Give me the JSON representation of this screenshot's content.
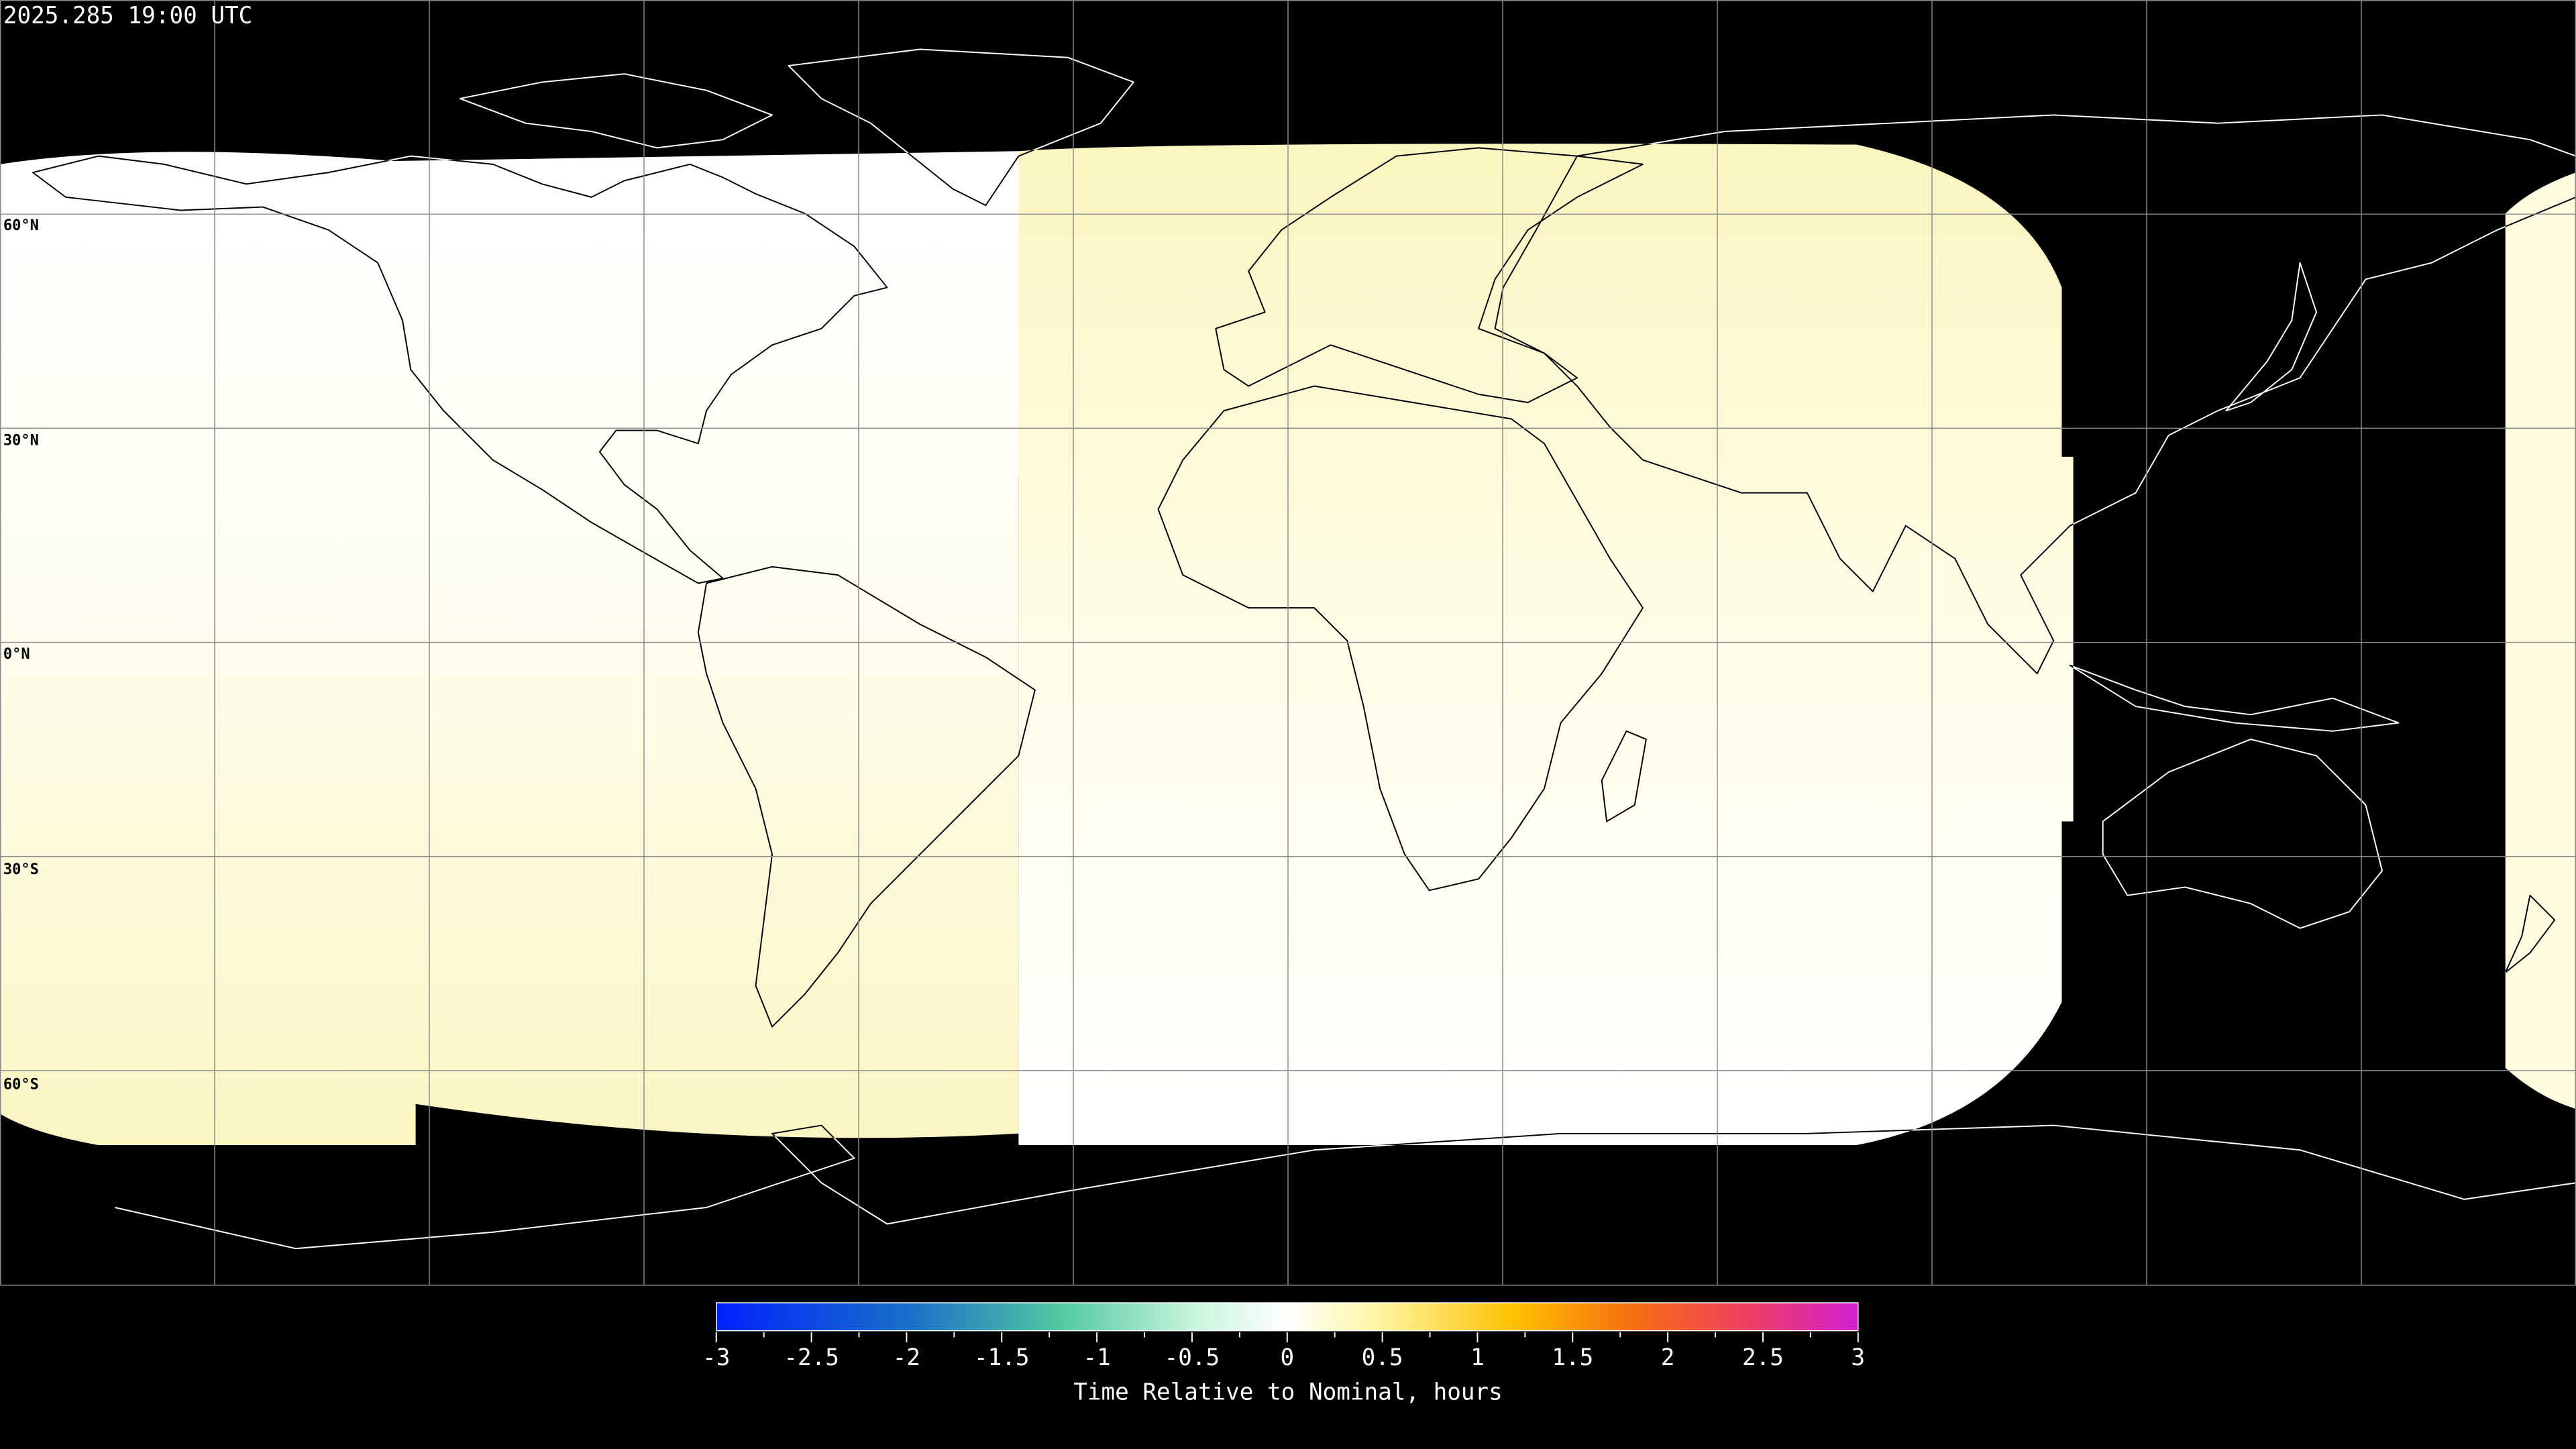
{
  "title": "2025.285 19:00 UTC",
  "map": {
    "projection": "equirectangular",
    "background_color": "#000000",
    "coverage_colors": {
      "white": "#ffffff",
      "light_yellow": "#fbf5c2"
    },
    "lat_labels": [
      "60°N",
      "30°N",
      "0°N",
      "30°S",
      "60°S"
    ],
    "grid_spacing_deg": 30
  },
  "colorbar": {
    "min": -3,
    "max": 3,
    "tick_labels": [
      "-3",
      "-2.5",
      "-2",
      "-1.5",
      "-1",
      "-0.5",
      "0",
      "0.5",
      "1",
      "1.5",
      "2",
      "2.5",
      "3"
    ],
    "label": "Time Relative to Nominal, hours",
    "colors": [
      "#0022ff",
      "#1a7fc0",
      "#50c8a0",
      "#c8f5dc",
      "#ffffff",
      "#fff5a0",
      "#ffc000",
      "#f57010",
      "#f04060",
      "#d020d0"
    ]
  }
}
